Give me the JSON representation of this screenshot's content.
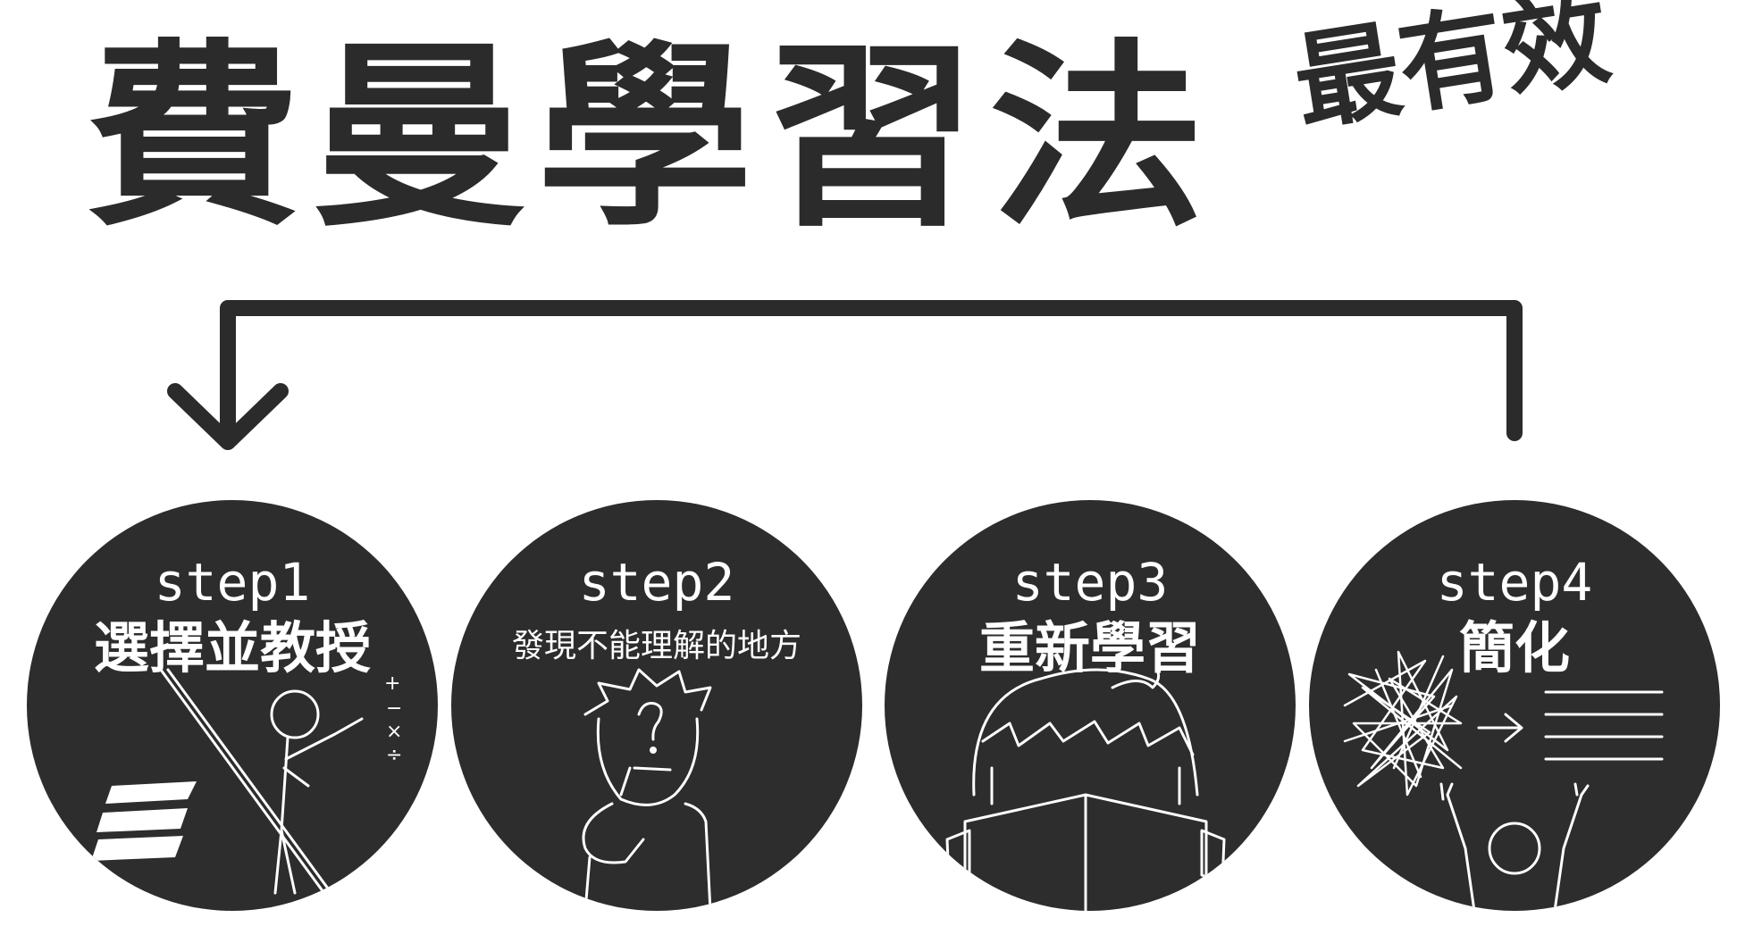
{
  "title": "費曼學習法",
  "subtitle": "最有效",
  "colors": {
    "circle": "#2d2d2d",
    "ink": "#2b2b2b",
    "chalk": "#ffffff"
  },
  "steps": [
    {
      "label": "step1",
      "desc": "選擇並教授",
      "icon": "teacher-at-blackboard-icon"
    },
    {
      "label": "step2",
      "desc": "發現不能理解的地方",
      "icon": "thinking-person-icon"
    },
    {
      "label": "step3",
      "desc": "重新學習",
      "icon": "reading-person-icon"
    },
    {
      "label": "step4",
      "desc": "簡化",
      "icon": "simplify-tangle-to-lines-icon"
    }
  ],
  "math_symbols": [
    "+",
    "−",
    "×",
    "÷"
  ]
}
